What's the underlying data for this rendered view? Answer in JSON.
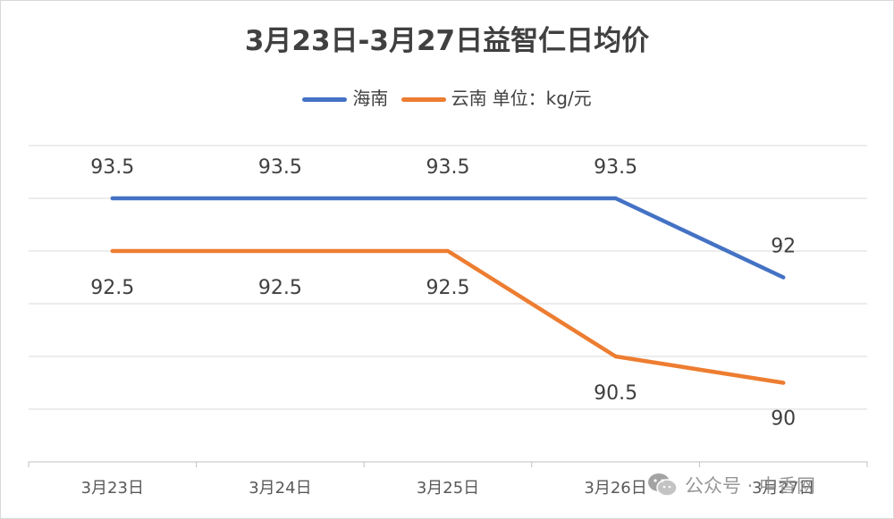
{
  "chart_data": {
    "type": "line",
    "title": "3月23日-3月27日益智仁日均价",
    "unit_label": "单位：kg/元",
    "categories": [
      "3月23日",
      "3月24日",
      "3月25日",
      "3月26日",
      "3月27日"
    ],
    "series": [
      {
        "name": "海南",
        "color": "#4472c4",
        "values": [
          93.5,
          93.5,
          93.5,
          93.5,
          92
        ],
        "labels": [
          "93.5",
          "93.5",
          "93.5",
          "93.5",
          "92"
        ]
      },
      {
        "name": "云南",
        "color": "#ed7d31",
        "values": [
          92.5,
          92.5,
          92.5,
          90.5,
          90
        ],
        "labels": [
          "92.5",
          "92.5",
          "92.5",
          "90.5",
          "90"
        ]
      }
    ],
    "ylim": [
      88.5,
      94.5
    ],
    "grid": true,
    "legend_position": "top"
  },
  "watermark": {
    "text": "公众号 · 中香网",
    "icon": "wechat-icon"
  }
}
